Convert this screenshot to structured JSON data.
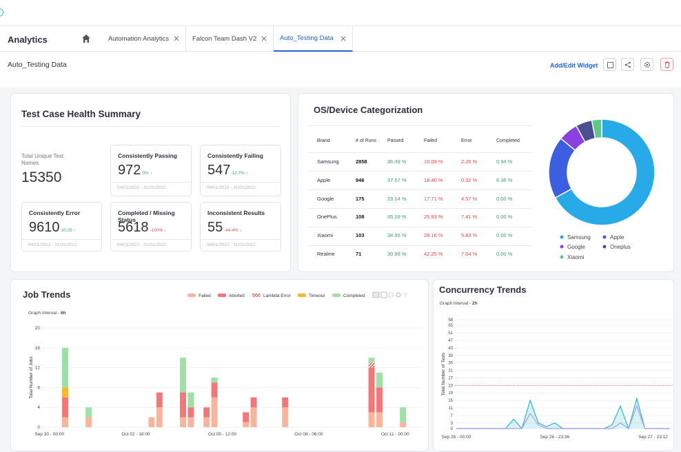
{
  "header": {
    "app_title": "Analytics",
    "tabs": [
      "Automation Analytics",
      "Falcon Team Dash V2",
      "Auto_Testing Data"
    ],
    "active_tab": 2
  },
  "dashboard": {
    "title": "Auto_Testing Data",
    "add_widget": "Add/Edit Widget"
  },
  "health_summary": {
    "title": "Test Case Health Summary",
    "total_label": "Total Unique Test Names",
    "total_value": 15350,
    "cards": [
      {
        "title": "Consistently Passing",
        "value": 972,
        "change": "0% ↑",
        "change_color": "#2fa865",
        "dates": "04/01/2022 - 31/01/2022"
      },
      {
        "title": "Consistently Failing",
        "value": 547,
        "change": "12.7% ↑",
        "change_color": "#2fa865",
        "dates": "04/01/2022 - 31/01/2022"
      },
      {
        "title": "Consistently Error",
        "value": 9610,
        "change": "10.25 ↑",
        "change_color": "#2fa865",
        "dates": "04/01/2022 - 31/01/2022"
      },
      {
        "title": "Completed / Missing Status",
        "value": 5618,
        "change": "-100% ↓",
        "change_color": "#e5484d",
        "dates": "04/01/2022 - 31/01/2022"
      },
      {
        "title": "Inconsistent Results",
        "value": 55,
        "change": "-44.4% ↓",
        "change_color": "#e5484d",
        "dates": "04/01/2022 - 31/01/2022"
      }
    ]
  },
  "os_table": {
    "title": "OS/Device Categorization",
    "columns": [
      "Brand",
      "# of Runs",
      "Passed",
      "Failed",
      "Error",
      "Completed"
    ],
    "rows": [
      [
        "Samsung",
        2858,
        "36.49 %",
        "10.09 %",
        "2.20 %",
        "0.94 %"
      ],
      [
        "Apple",
        946,
        "37.57 %",
        "18.40 %",
        "0.32 %",
        "8.36 %"
      ],
      [
        "Google",
        175,
        "29.14 %",
        "17.71 %",
        "4.57 %",
        "0.00 %"
      ],
      [
        "OnePlus",
        108,
        "35.19 %",
        "25.93 %",
        "7.41 %",
        "0.00 %"
      ],
      [
        "Xiaomi",
        103,
        "34.95 %",
        "28.16 %",
        "5.83 %",
        "0.00 %"
      ],
      [
        "Realme",
        71,
        "30.99 %",
        "42.25 %",
        "7.04 %",
        "0.00 %"
      ]
    ]
  },
  "chart_data": [
    {
      "type": "pie",
      "donut": true,
      "categories": [
        "Samsung",
        "Apple",
        "Google",
        "Oneplus",
        "Xiaomi"
      ],
      "values": [
        67,
        19,
        6,
        5,
        3
      ],
      "colors": [
        "#29aae8",
        "#3b5fe0",
        "#8a3fe0",
        "#4b4f8f",
        "#5cc98a"
      ]
    },
    {
      "type": "bar",
      "stacked": true,
      "title": "Job Trends",
      "graph_interval_label": "Graph Interval -",
      "graph_interval": "6h",
      "y_label": "Total Number of Jobs",
      "categories": [
        "Sep 30 - 00:00",
        null,
        null,
        null,
        null,
        null,
        null,
        null,
        null,
        null,
        null,
        "Oct 02 - 18:00",
        null,
        null,
        null,
        null,
        null,
        null,
        null,
        null,
        null,
        null,
        "Oct 05 - 12:00",
        null,
        null,
        null,
        null,
        null,
        null,
        null,
        null,
        null,
        null,
        "Oct 08 - 06:00",
        null,
        null,
        null,
        null,
        null,
        null,
        null,
        null,
        null,
        null,
        "Oct 11 - 00:00",
        null,
        null,
        null
      ],
      "series": [
        {
          "name": "Failed",
          "color": "#f9b49c",
          "values": [
            0,
            0,
            2,
            0,
            0,
            2,
            0,
            0,
            0,
            0,
            0,
            0,
            0,
            2,
            4,
            0,
            0,
            2,
            2,
            0,
            2,
            6,
            0,
            0,
            0,
            1,
            4,
            0,
            0,
            0,
            4,
            0,
            0,
            0,
            0,
            0,
            0,
            0,
            0,
            0,
            0,
            3,
            3,
            0,
            0,
            1,
            0,
            0
          ]
        },
        {
          "name": "Aborted",
          "color": "#f0787a",
          "values": [
            0,
            0,
            4,
            0,
            0,
            0,
            0,
            0,
            0,
            0,
            0,
            0,
            0,
            0,
            3,
            0,
            0,
            5,
            2,
            0,
            2,
            3,
            0,
            0,
            0,
            2,
            2,
            0,
            0,
            0,
            2,
            0,
            0,
            0,
            0,
            0,
            0,
            0,
            0,
            0,
            0,
            9,
            5,
            0,
            0,
            0,
            0,
            0
          ]
        },
        {
          "name": "Lambda Error",
          "color": "#e8605a",
          "hatched": true,
          "values": [
            0,
            0,
            0,
            0,
            0,
            0,
            0,
            0,
            0,
            0,
            0,
            0,
            0,
            0,
            0,
            0,
            0,
            0,
            0,
            0,
            0,
            0,
            0,
            0,
            0,
            0,
            0,
            0,
            0,
            0,
            0,
            0,
            0,
            0,
            0,
            0,
            0,
            0,
            0,
            0,
            0,
            1,
            0,
            0,
            0,
            0,
            0,
            0
          ]
        },
        {
          "name": "Timeout",
          "color": "#f5b82e",
          "values": [
            0,
            0,
            2,
            0,
            0,
            0,
            0,
            0,
            0,
            0,
            0,
            0,
            0,
            0,
            0,
            0,
            0,
            0,
            0,
            0,
            0,
            0,
            0,
            0,
            0,
            0,
            0,
            0,
            0,
            0,
            0,
            0,
            0,
            0,
            0,
            0,
            0,
            0,
            0,
            0,
            0,
            0,
            0,
            0,
            0,
            0,
            0,
            0
          ]
        },
        {
          "name": "Completed",
          "color": "#9ee0a8",
          "values": [
            0,
            0,
            8,
            0,
            0,
            2,
            0,
            0,
            0,
            0,
            0,
            0,
            0,
            0,
            0,
            0,
            0,
            7,
            3,
            0,
            0,
            1,
            0,
            0,
            0,
            0,
            0,
            0,
            0,
            0,
            0,
            0,
            0,
            0,
            0,
            0,
            0,
            0,
            0,
            0,
            0,
            1,
            3,
            0,
            0,
            3,
            0,
            0
          ]
        }
      ],
      "ylim": [
        0,
        20
      ],
      "yticks": [
        0,
        4,
        8,
        12,
        16,
        20
      ],
      "grid": true
    },
    {
      "type": "line",
      "title": "Concurrency Trends",
      "graph_interval_label": "Graph Interval -",
      "graph_interval": "2h",
      "y_label": "Total Number of Tests",
      "categories": [
        "Sep 26 - 00:00",
        null,
        null,
        null,
        null,
        null,
        null,
        null,
        null,
        null,
        null,
        null,
        "Sep 26 - 23:36",
        null,
        null,
        null,
        null,
        null,
        null,
        null,
        null,
        null,
        null,
        null,
        "Sep 27 - 23:12",
        null,
        null
      ],
      "series": [
        {
          "color": "#2bb5c8",
          "area": true,
          "values": [
            0,
            0,
            0,
            0,
            0,
            0,
            0,
            5,
            0,
            15,
            3,
            1,
            3,
            0,
            0,
            0,
            0,
            0,
            0,
            2,
            12,
            0,
            16,
            0,
            0,
            0,
            0
          ]
        },
        {
          "color": "#a99cf0",
          "values": [
            0,
            0,
            0,
            0,
            0,
            0,
            0,
            0,
            0,
            8,
            2,
            0,
            0,
            0,
            0,
            0,
            0,
            0,
            0,
            0,
            3,
            0,
            12,
            0,
            0,
            0,
            0
          ]
        }
      ],
      "threshold": 23,
      "threshold_color": "#e07070",
      "ylim": [
        0,
        58
      ],
      "yticks": [
        0,
        3,
        7,
        11,
        15,
        19,
        23,
        27,
        31,
        35,
        39,
        43,
        47,
        51,
        55,
        58
      ],
      "grid": true
    }
  ]
}
